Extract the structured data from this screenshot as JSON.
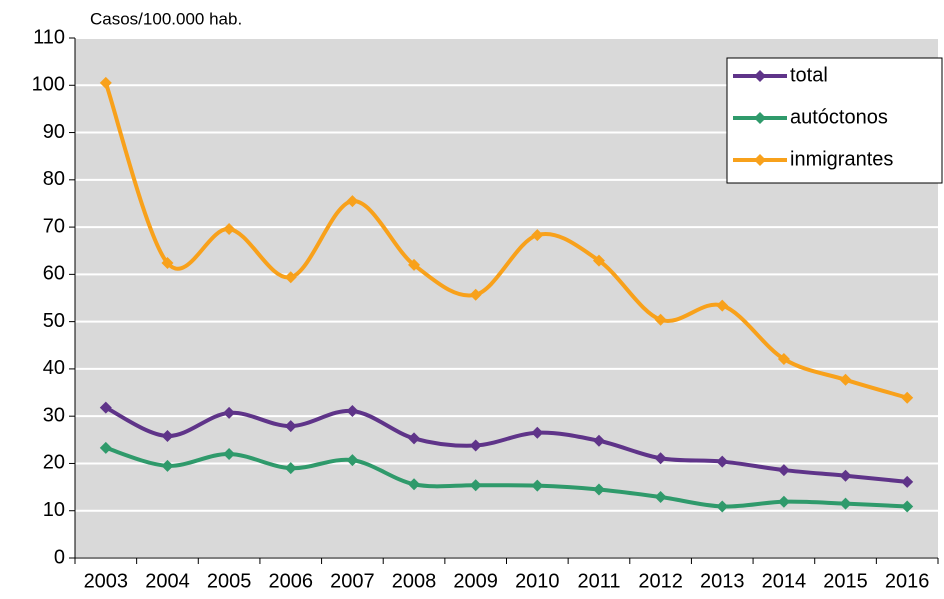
{
  "chart_data": {
    "type": "line",
    "y_label": "Casos/100.000 hab.",
    "categories": [
      "2003",
      "2004",
      "2005",
      "2006",
      "2007",
      "2008",
      "2009",
      "2010",
      "2011",
      "2012",
      "2013",
      "2014",
      "2015",
      "2016"
    ],
    "series": [
      {
        "name": "total",
        "color": "#5f3489",
        "values": [
          31.8,
          25.8,
          30.7,
          27.9,
          31.1,
          25.3,
          23.8,
          26.5,
          24.8,
          21.1,
          20.4,
          18.6,
          17.4,
          16.1
        ]
      },
      {
        "name": "autóctonos",
        "color": "#2f9a6b",
        "values": [
          23.3,
          19.5,
          22.0,
          19.0,
          20.7,
          15.6,
          15.4,
          15.3,
          14.5,
          12.9,
          10.9,
          11.9,
          11.5,
          10.9
        ]
      },
      {
        "name": "inmigrantes",
        "color": "#f8a11b",
        "values": [
          100.5,
          62.4,
          69.6,
          59.4,
          75.5,
          62.0,
          55.7,
          68.3,
          62.9,
          50.4,
          53.4,
          42.1,
          37.7,
          33.9
        ]
      }
    ],
    "ylim": [
      0,
      110
    ],
    "yticks": [
      0,
      10,
      20,
      30,
      40,
      50,
      60,
      70,
      80,
      90,
      100,
      110
    ],
    "grid": true,
    "legend": "top-right",
    "smooth": true
  }
}
